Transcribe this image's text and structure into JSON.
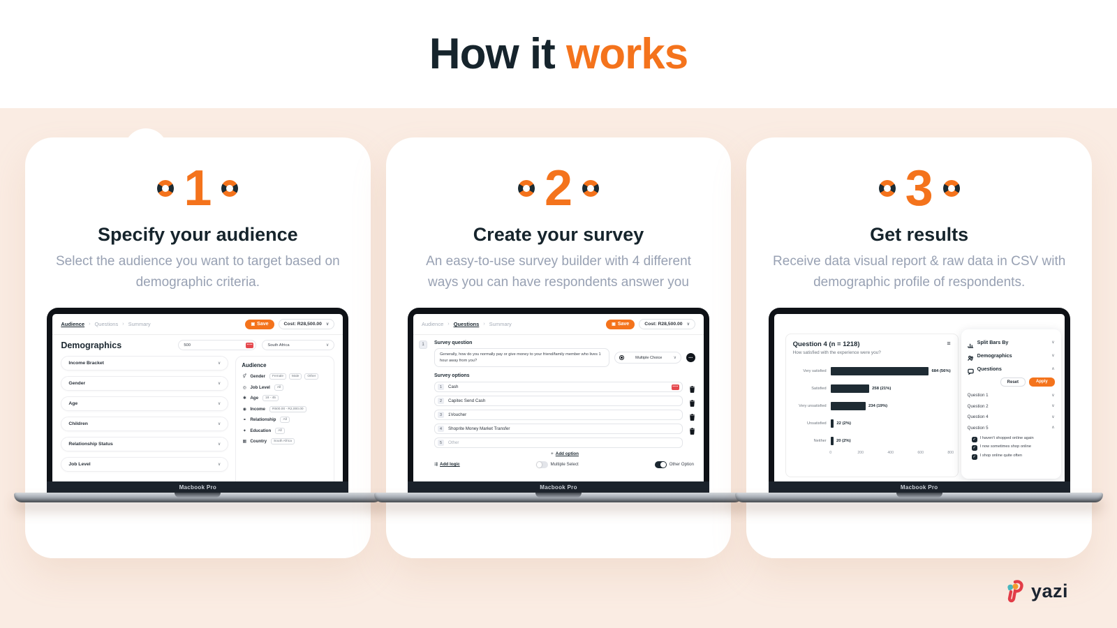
{
  "page": {
    "heading_dark": "How it ",
    "heading_accent": "works"
  },
  "colors": {
    "accent": "#F4731C",
    "navy": "#1B2730",
    "peach": "#FAECE3",
    "muted_text": "#98A1B3",
    "danger": "#E5484D"
  },
  "icons": {
    "chevron_down": "∨",
    "chevron_up": "∧",
    "breadcrumb_sep": "›",
    "menu": "≡",
    "save_glyph": "▣",
    "drag_dots": "••••",
    "more_dots": "•••",
    "add": "+",
    "check": "✓",
    "logic": "⇶",
    "audience": {
      "gender": "⚥",
      "job_level": "◎",
      "age": "✱",
      "income": "◉",
      "relationship": "⚭",
      "education": "✦",
      "country": "▦"
    }
  },
  "steps": [
    {
      "number": "1",
      "title": "Specify your audience",
      "description": "Select the audience you want to target based on demographic criteria.",
      "device_label": "Macbook Pro"
    },
    {
      "number": "2",
      "title": "Create your survey",
      "description": "An easy-to-use survey builder with 4 different ways you can have respondents answer you",
      "device_label": "Macbook Pro"
    },
    {
      "number": "3",
      "title": "Get results",
      "description": "Receive data visual report & raw data in CSV with demographic profile of respondents.",
      "device_label": "Macbook Pro"
    }
  ],
  "screen1": {
    "breadcrumb": [
      "Audience",
      "Questions",
      "Summary"
    ],
    "save_label": "Save",
    "cost_label": "Cost: R28,500.00",
    "heading": "Demographics",
    "respondents_value": "500",
    "country_value": "South Africa",
    "filters": [
      "Income Bracket",
      "Gender",
      "Age",
      "Children",
      "Relationship Status",
      "Job Level"
    ],
    "audience": {
      "title": "Audience",
      "rows": [
        {
          "label": "Gender",
          "chips": [
            "Female",
            "Male",
            "Other"
          ]
        },
        {
          "label": "Job Level",
          "chips": [
            "All"
          ]
        },
        {
          "label": "Age",
          "chips": [
            "18 - 45"
          ]
        },
        {
          "label": "Income",
          "chips": [
            "R500.00 - R2,000.00"
          ]
        },
        {
          "label": "Relationship",
          "chips": [
            "All"
          ]
        },
        {
          "label": "Education",
          "chips": [
            "All"
          ]
        },
        {
          "label": "Country",
          "chips": [
            "South Africa"
          ]
        }
      ]
    }
  },
  "screen2": {
    "breadcrumb": [
      "Audience",
      "Questions",
      "Summary"
    ],
    "save_label": "Save",
    "cost_label": "Cost: R28,500.00",
    "section_badge": "1",
    "question_label": "Survey question",
    "question_text": "Generally, how do you normally pay or give money to your friend/family member who lives 1 hour away from you?",
    "question_type": "Multiple Choice",
    "options_label": "Survey options",
    "options": [
      {
        "num": "1",
        "text": "Cash"
      },
      {
        "num": "2",
        "text": "Capitec Send Cash"
      },
      {
        "num": "3",
        "text": "1Voucher"
      },
      {
        "num": "4",
        "text": "Shoprite Money Market Transfer"
      },
      {
        "num": "5",
        "text": "Other"
      }
    ],
    "add_option_label": "Add option",
    "add_logic_label": "Add logic",
    "multiple_select_label": "Multiple Select",
    "other_option_label": "Other Option"
  },
  "screen3": {
    "sidebar": {
      "split_bars_label": "Split Bars By",
      "demographics_label": "Demographics",
      "questions_label": "Questions",
      "reset_label": "Reset",
      "apply_label": "Apply",
      "question_items": [
        "Question 1",
        "Question 2",
        "Question 4",
        "Question 5"
      ],
      "answers": [
        "I haven't shopped online again",
        "I now sometimes shop online",
        "I shop online quite often"
      ]
    }
  },
  "chart_data": {
    "type": "bar",
    "orientation": "horizontal",
    "title": "Question 4 (n = 1218)",
    "subtitle": "How satisfied with the experience were you?",
    "categories": [
      "Very satisfied",
      "Satisfied",
      "Very unsatisfied",
      "Unsatisfied",
      "Neither"
    ],
    "values": [
      684,
      258,
      234,
      22,
      20
    ],
    "labels": [
      "684 (56%)",
      "258 (21%)",
      "234 (19%)",
      "22 (2%)",
      "20 (2%)"
    ],
    "xlim": [
      0,
      800
    ],
    "xticks": [
      "0",
      "200",
      "400",
      "600",
      "800"
    ],
    "bar_color": "#1E2B33",
    "grid": false,
    "legend": false
  },
  "brand": {
    "name": "yazi"
  }
}
